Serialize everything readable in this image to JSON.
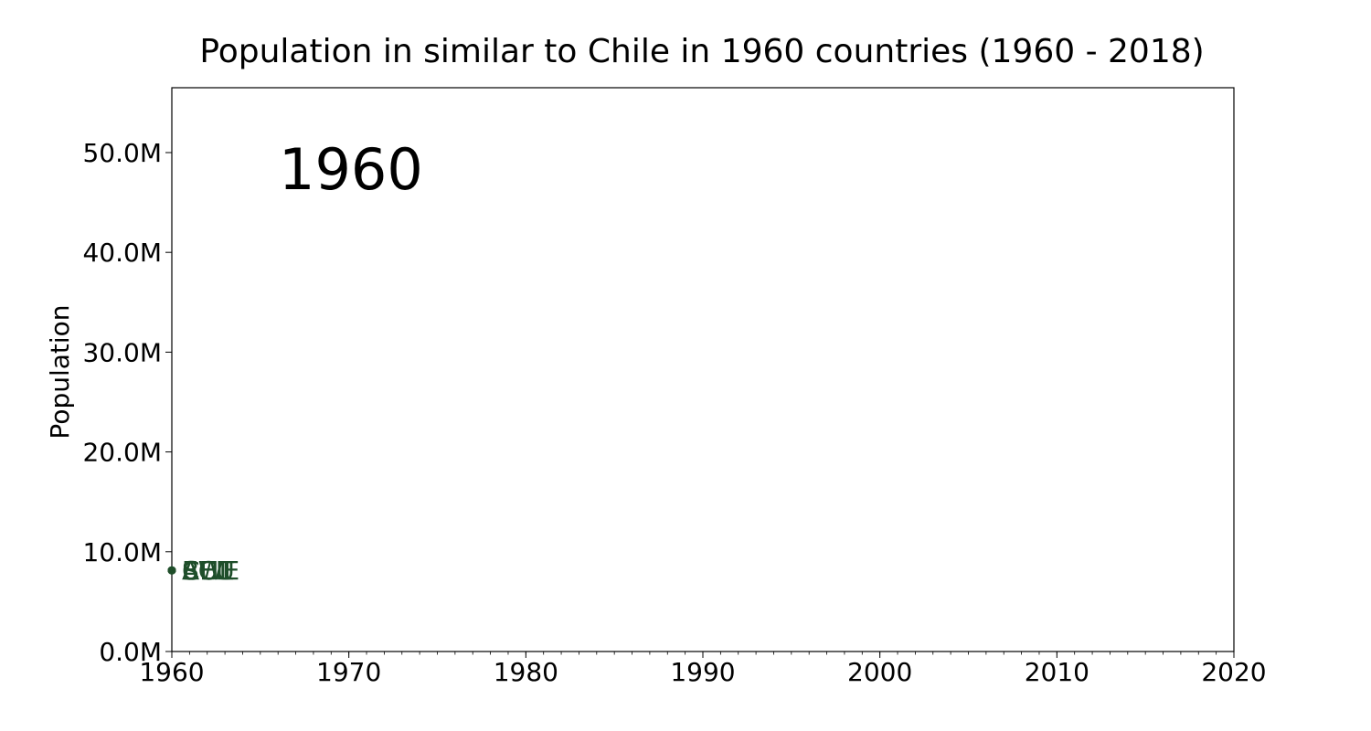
{
  "chart_data": {
    "type": "scatter",
    "title": "Population in similar to Chile in 1960 countries (1960 - 2018)",
    "xlabel": "",
    "ylabel": "Population",
    "year_label": "1960",
    "xlim": [
      1960,
      2020
    ],
    "ylim": [
      0,
      56500000
    ],
    "x_ticks": [
      {
        "value": 1960,
        "label": "1960"
      },
      {
        "value": 1970,
        "label": "1970"
      },
      {
        "value": 1980,
        "label": "1980"
      },
      {
        "value": 1990,
        "label": "1990"
      },
      {
        "value": 2000,
        "label": "2000"
      },
      {
        "value": 2010,
        "label": "2010"
      },
      {
        "value": 2020,
        "label": "2020"
      }
    ],
    "x_minor_step": 1,
    "y_ticks": [
      {
        "value": 0,
        "label": "0.0M"
      },
      {
        "value": 10000000,
        "label": "10.0M"
      },
      {
        "value": 20000000,
        "label": "20.0M"
      },
      {
        "value": 30000000,
        "label": "30.0M"
      },
      {
        "value": 40000000,
        "label": "40.0M"
      },
      {
        "value": 50000000,
        "label": "50.0M"
      }
    ],
    "grid": false,
    "legend": "none",
    "series": [
      {
        "label": "CHL",
        "x": 1960,
        "y": 8130000,
        "color": "#1f4e2a"
      },
      {
        "label": "BEL",
        "x": 1960,
        "y": 8130000,
        "color": "#1f4e2a"
      },
      {
        "label": "SWE",
        "x": 1960,
        "y": 8130000,
        "color": "#1f4e2a"
      },
      {
        "label": "AUT",
        "x": 1960,
        "y": 8130000,
        "color": "#1f4e2a"
      },
      {
        "label": "ECU",
        "x": 1960,
        "y": 8130000,
        "color": "#1f4e2a"
      }
    ]
  }
}
